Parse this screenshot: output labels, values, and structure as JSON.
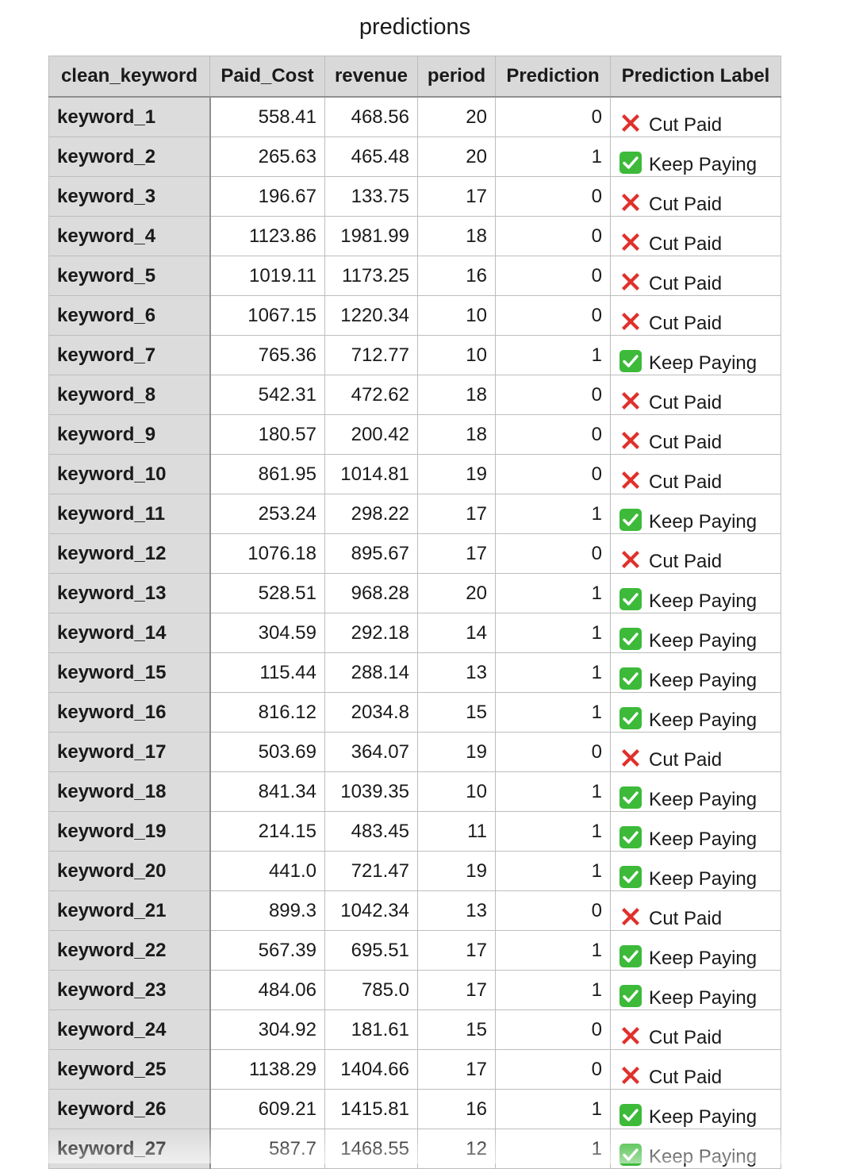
{
  "title": "predictions",
  "columns": [
    "clean_keyword",
    "Paid_Cost",
    "revenue",
    "period",
    "Prediction",
    "Prediction Label"
  ],
  "colors": {
    "header_bg": "#d9d9d9",
    "index_bg": "#dcdcdc",
    "cut_icon": "#e0302b",
    "keep_icon": "#3dba3a"
  },
  "icons": {
    "cut": "cross-mark-icon",
    "keep": "check-mark-icon"
  },
  "rows": [
    {
      "keyword": "keyword_1",
      "paid_cost": "558.41",
      "revenue": "468.56",
      "period": "20",
      "prediction": "0",
      "label": "Cut Paid",
      "icon": "cut"
    },
    {
      "keyword": "keyword_2",
      "paid_cost": "265.63",
      "revenue": "465.48",
      "period": "20",
      "prediction": "1",
      "label": "Keep Paying",
      "icon": "keep"
    },
    {
      "keyword": "keyword_3",
      "paid_cost": "196.67",
      "revenue": "133.75",
      "period": "17",
      "prediction": "0",
      "label": "Cut Paid",
      "icon": "cut"
    },
    {
      "keyword": "keyword_4",
      "paid_cost": "1123.86",
      "revenue": "1981.99",
      "period": "18",
      "prediction": "0",
      "label": "Cut Paid",
      "icon": "cut"
    },
    {
      "keyword": "keyword_5",
      "paid_cost": "1019.11",
      "revenue": "1173.25",
      "period": "16",
      "prediction": "0",
      "label": "Cut Paid",
      "icon": "cut"
    },
    {
      "keyword": "keyword_6",
      "paid_cost": "1067.15",
      "revenue": "1220.34",
      "period": "10",
      "prediction": "0",
      "label": "Cut Paid",
      "icon": "cut"
    },
    {
      "keyword": "keyword_7",
      "paid_cost": "765.36",
      "revenue": "712.77",
      "period": "10",
      "prediction": "1",
      "label": "Keep Paying",
      "icon": "keep"
    },
    {
      "keyword": "keyword_8",
      "paid_cost": "542.31",
      "revenue": "472.62",
      "period": "18",
      "prediction": "0",
      "label": "Cut Paid",
      "icon": "cut"
    },
    {
      "keyword": "keyword_9",
      "paid_cost": "180.57",
      "revenue": "200.42",
      "period": "18",
      "prediction": "0",
      "label": "Cut Paid",
      "icon": "cut"
    },
    {
      "keyword": "keyword_10",
      "paid_cost": "861.95",
      "revenue": "1014.81",
      "period": "19",
      "prediction": "0",
      "label": "Cut Paid",
      "icon": "cut"
    },
    {
      "keyword": "keyword_11",
      "paid_cost": "253.24",
      "revenue": "298.22",
      "period": "17",
      "prediction": "1",
      "label": "Keep Paying",
      "icon": "keep"
    },
    {
      "keyword": "keyword_12",
      "paid_cost": "1076.18",
      "revenue": "895.67",
      "period": "17",
      "prediction": "0",
      "label": "Cut Paid",
      "icon": "cut"
    },
    {
      "keyword": "keyword_13",
      "paid_cost": "528.51",
      "revenue": "968.28",
      "period": "20",
      "prediction": "1",
      "label": "Keep Paying",
      "icon": "keep"
    },
    {
      "keyword": "keyword_14",
      "paid_cost": "304.59",
      "revenue": "292.18",
      "period": "14",
      "prediction": "1",
      "label": "Keep Paying",
      "icon": "keep"
    },
    {
      "keyword": "keyword_15",
      "paid_cost": "115.44",
      "revenue": "288.14",
      "period": "13",
      "prediction": "1",
      "label": "Keep Paying",
      "icon": "keep"
    },
    {
      "keyword": "keyword_16",
      "paid_cost": "816.12",
      "revenue": "2034.8",
      "period": "15",
      "prediction": "1",
      "label": "Keep Paying",
      "icon": "keep"
    },
    {
      "keyword": "keyword_17",
      "paid_cost": "503.69",
      "revenue": "364.07",
      "period": "19",
      "prediction": "0",
      "label": "Cut Paid",
      "icon": "cut"
    },
    {
      "keyword": "keyword_18",
      "paid_cost": "841.34",
      "revenue": "1039.35",
      "period": "10",
      "prediction": "1",
      "label": "Keep Paying",
      "icon": "keep"
    },
    {
      "keyword": "keyword_19",
      "paid_cost": "214.15",
      "revenue": "483.45",
      "period": "11",
      "prediction": "1",
      "label": "Keep Paying",
      "icon": "keep"
    },
    {
      "keyword": "keyword_20",
      "paid_cost": "441.0",
      "revenue": "721.47",
      "period": "19",
      "prediction": "1",
      "label": "Keep Paying",
      "icon": "keep"
    },
    {
      "keyword": "keyword_21",
      "paid_cost": "899.3",
      "revenue": "1042.34",
      "period": "13",
      "prediction": "0",
      "label": "Cut Paid",
      "icon": "cut"
    },
    {
      "keyword": "keyword_22",
      "paid_cost": "567.39",
      "revenue": "695.51",
      "period": "17",
      "prediction": "1",
      "label": "Keep Paying",
      "icon": "keep"
    },
    {
      "keyword": "keyword_23",
      "paid_cost": "484.06",
      "revenue": "785.0",
      "period": "17",
      "prediction": "1",
      "label": "Keep Paying",
      "icon": "keep"
    },
    {
      "keyword": "keyword_24",
      "paid_cost": "304.92",
      "revenue": "181.61",
      "period": "15",
      "prediction": "0",
      "label": "Cut Paid",
      "icon": "cut"
    },
    {
      "keyword": "keyword_25",
      "paid_cost": "1138.29",
      "revenue": "1404.66",
      "period": "17",
      "prediction": "0",
      "label": "Cut Paid",
      "icon": "cut"
    },
    {
      "keyword": "keyword_26",
      "paid_cost": "609.21",
      "revenue": "1415.81",
      "period": "16",
      "prediction": "1",
      "label": "Keep Paying",
      "icon": "keep"
    },
    {
      "keyword": "keyword_27",
      "paid_cost": "587.7",
      "revenue": "1468.55",
      "period": "12",
      "prediction": "1",
      "label": "Keep Paying",
      "icon": "keep"
    }
  ]
}
